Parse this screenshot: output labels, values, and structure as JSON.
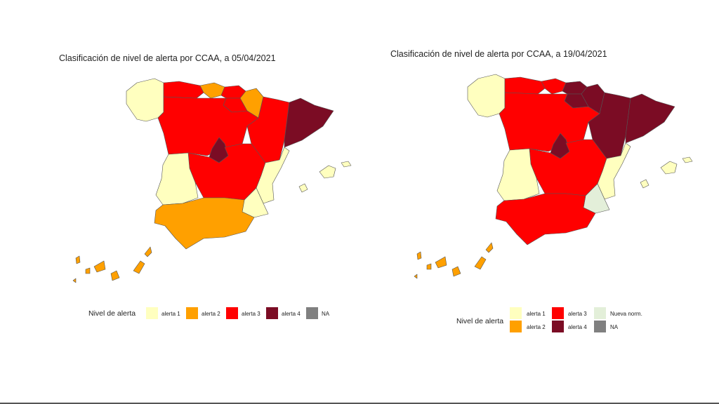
{
  "colors": {
    "alerta_1": "#FFFFBF",
    "alerta_2": "#FFA000",
    "alerta_3": "#FF0000",
    "alerta_4": "#7B0C24",
    "nueva_norm": "#E3EFD9",
    "na": "#808080"
  },
  "maps": [
    {
      "title": "Clasificación de nivel de alerta por CCAA, a 05/04/2021",
      "legend_title": "Nivel de alerta",
      "legend": [
        {
          "label": "alerta 1",
          "level": "alerta_1"
        },
        {
          "label": "alerta 2",
          "level": "alerta_2"
        },
        {
          "label": "alerta 3",
          "level": "alerta_3"
        },
        {
          "label": "alerta 4",
          "level": "alerta_4"
        },
        {
          "label": "NA",
          "level": "na"
        }
      ],
      "regions": {
        "galicia": "alerta_1",
        "asturias": "alerta_3",
        "cantabria": "alerta_2",
        "pais_vasco": "alerta_3",
        "navarra": "alerta_2",
        "la_rioja": "alerta_3",
        "aragon": "alerta_3",
        "cataluna": "alerta_4",
        "castilla_leon": "alerta_3",
        "madrid": "alerta_4",
        "castilla_la_mancha": "alerta_3",
        "extremadura": "alerta_1",
        "valencia": "alerta_1",
        "murcia": "alerta_1",
        "andalucia": "alerta_2",
        "baleares": "alerta_1",
        "canarias": "alerta_2"
      }
    },
    {
      "title": "Clasificación de nivel de alerta por CCAA, a 19/04/2021",
      "legend_title": "Nivel de alerta",
      "legend": [
        {
          "label": "alerta 1",
          "level": "alerta_1"
        },
        {
          "label": "alerta 2",
          "level": "alerta_2"
        },
        {
          "label": "alerta 3",
          "level": "alerta_3"
        },
        {
          "label": "alerta 4",
          "level": "alerta_4"
        },
        {
          "label": "Nueva norm.",
          "level": "nueva_norm"
        },
        {
          "label": "NA",
          "level": "na"
        }
      ],
      "regions": {
        "galicia": "alerta_1",
        "asturias": "alerta_3",
        "cantabria": "alerta_3",
        "pais_vasco": "alerta_4",
        "navarra": "alerta_4",
        "la_rioja": "alerta_4",
        "aragon": "alerta_4",
        "cataluna": "alerta_4",
        "castilla_leon": "alerta_3",
        "madrid": "alerta_4",
        "castilla_la_mancha": "alerta_3",
        "extremadura": "alerta_1",
        "valencia": "alerta_1",
        "murcia": "nueva_norm",
        "andalucia": "alerta_3",
        "baleares": "alerta_1",
        "canarias": "alerta_2"
      }
    }
  ]
}
